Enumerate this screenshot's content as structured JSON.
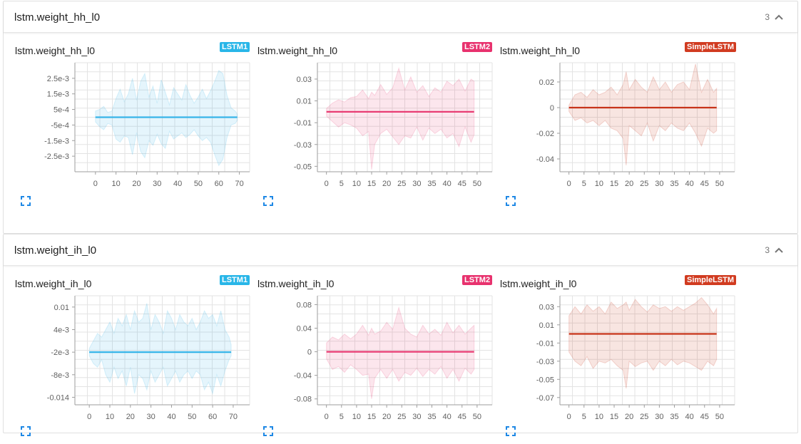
{
  "colors": {
    "lstm1": "#38b5e8",
    "lstm2": "#e83c73",
    "simple": "#c7341a",
    "grid": "#e3e3e3",
    "axis": "#9e9e9e",
    "expand_icon": "#1e88e5"
  },
  "sections": [
    {
      "title": "lstm.weight_hh_l0",
      "count": "3",
      "cards": [
        {
          "title": "lstm.weight_hh_l0",
          "run": "LSTM1",
          "run_color": "#29b6e8"
        },
        {
          "title": "lstm.weight_hh_l0",
          "run": "LSTM2",
          "run_color": "#e8326e"
        },
        {
          "title": "lstm.weight_hh_l0",
          "run": "SimpleLSTM",
          "run_color": "#d13b20"
        }
      ]
    },
    {
      "title": "lstm.weight_ih_l0",
      "count": "3",
      "cards": [
        {
          "title": "lstm.weight_ih_l0",
          "run": "LSTM1",
          "run_color": "#29b6e8"
        },
        {
          "title": "lstm.weight_ih_l0",
          "run": "LSTM2",
          "run_color": "#e8326e"
        },
        {
          "title": "lstm.weight_ih_l0",
          "run": "SimpleLSTM",
          "run_color": "#d13b20"
        }
      ]
    }
  ],
  "chart_data": [
    {
      "type": "area",
      "series_key": "lstm1",
      "ylim": [
        -0.0035,
        0.0035
      ],
      "xlim": [
        -10,
        75
      ],
      "yticks": [
        0.0025,
        0.0015,
        0.0005,
        -0.0005,
        -0.0015,
        -0.0025
      ],
      "ytick_labels": [
        "2.5e-3",
        "1.5e-3",
        "5e-4",
        "-5e-4",
        "-1.5e-3",
        "-2.5e-3"
      ],
      "xticks": [
        0,
        10,
        20,
        30,
        40,
        50,
        60,
        70
      ],
      "xtick_labels": [
        "0",
        "10",
        "20",
        "30",
        "40",
        "50",
        "60",
        "70"
      ],
      "x": [
        0,
        2,
        4,
        6,
        8,
        10,
        12,
        14,
        16,
        18,
        20,
        22,
        24,
        26,
        28,
        30,
        32,
        34,
        36,
        38,
        40,
        42,
        44,
        46,
        48,
        50,
        52,
        54,
        56,
        58,
        60,
        62,
        64,
        66,
        68,
        69
      ],
      "mean": [
        0.0,
        0.0,
        0.0,
        0.0,
        0.0,
        0.0,
        0.0,
        0.0,
        0.0,
        0.0,
        0.0,
        0.0,
        0.0,
        0.0,
        0.0,
        0.0,
        0.0,
        0.0,
        0.0,
        0.0,
        0.0,
        0.0,
        0.0,
        0.0,
        0.0,
        0.0,
        0.0,
        0.0,
        0.0,
        0.0,
        0.0,
        0.0,
        0.0,
        0.0,
        0.0,
        0.0
      ],
      "upper": [
        0.0004,
        0.0005,
        0.0007,
        0.0003,
        0.0004,
        0.0012,
        0.0018,
        0.001,
        0.0015,
        0.0025,
        0.0011,
        0.0023,
        0.0028,
        0.0013,
        0.002,
        0.0009,
        0.0024,
        0.0016,
        0.0008,
        0.0019,
        0.0015,
        0.0011,
        0.0021,
        0.0014,
        0.0009,
        0.0013,
        0.0018,
        0.0012,
        0.0017,
        0.0023,
        0.003,
        0.0028,
        0.0014,
        0.0006,
        0.0004,
        0.0002
      ],
      "lower": [
        -0.0003,
        -0.0006,
        -0.0008,
        -0.0004,
        -0.0005,
        -0.0014,
        -0.0016,
        -0.0012,
        -0.0013,
        -0.0024,
        -0.001,
        -0.0022,
        -0.0026,
        -0.0015,
        -0.0018,
        -0.0011,
        -0.0017,
        -0.002,
        -0.0009,
        -0.0014,
        -0.0012,
        -0.001,
        -0.0013,
        -0.0011,
        -0.0008,
        -0.0012,
        -0.0015,
        -0.0013,
        -0.0016,
        -0.0024,
        -0.0031,
        -0.0027,
        -0.0013,
        -0.0005,
        -0.0004,
        -0.0002
      ]
    },
    {
      "type": "area",
      "series_key": "lstm2",
      "ylim": [
        -0.055,
        0.045
      ],
      "xlim": [
        -3,
        55
      ],
      "yticks": [
        0.03,
        0.01,
        -0.01,
        -0.03,
        -0.05
      ],
      "ytick_labels": [
        "0.03",
        "0.01",
        "-0.01",
        "-0.03",
        "-0.05"
      ],
      "xticks": [
        0,
        5,
        10,
        15,
        20,
        25,
        30,
        35,
        40,
        45,
        50
      ],
      "xtick_labels": [
        "0",
        "5",
        "10",
        "15",
        "20",
        "25",
        "30",
        "35",
        "40",
        "45",
        "50"
      ],
      "x": [
        0,
        2,
        4,
        6,
        8,
        10,
        12,
        14,
        15,
        16,
        18,
        20,
        22,
        24,
        26,
        28,
        30,
        32,
        34,
        36,
        38,
        40,
        42,
        44,
        46,
        48,
        49
      ],
      "mean": [
        0,
        0,
        0,
        0,
        0,
        0,
        0,
        0,
        0,
        0,
        0,
        0,
        0,
        0,
        0,
        0,
        0,
        0,
        0,
        0,
        0,
        0,
        0,
        0,
        0,
        0,
        0
      ],
      "upper": [
        0.003,
        0.008,
        0.011,
        0.009,
        0.013,
        0.014,
        0.02,
        0.012,
        0.018,
        0.015,
        0.025,
        0.016,
        0.022,
        0.04,
        0.02,
        0.032,
        0.018,
        0.024,
        0.014,
        0.022,
        0.018,
        0.028,
        0.024,
        0.03,
        0.019,
        0.03,
        0.028
      ],
      "lower": [
        -0.004,
        -0.009,
        -0.014,
        -0.01,
        -0.012,
        -0.015,
        -0.022,
        -0.018,
        -0.053,
        -0.03,
        -0.02,
        -0.016,
        -0.023,
        -0.03,
        -0.022,
        -0.024,
        -0.014,
        -0.026,
        -0.015,
        -0.02,
        -0.016,
        -0.024,
        -0.02,
        -0.032,
        -0.014,
        -0.028,
        -0.021
      ]
    },
    {
      "type": "area",
      "series_key": "simple",
      "ylim": [
        -0.05,
        0.035
      ],
      "xlim": [
        -3,
        55
      ],
      "yticks": [
        0.02,
        0,
        -0.02,
        -0.04
      ],
      "ytick_labels": [
        "0.02",
        "0",
        "-0.02",
        "-0.04"
      ],
      "xticks": [
        0,
        5,
        10,
        15,
        20,
        25,
        30,
        35,
        40,
        45,
        50
      ],
      "xtick_labels": [
        "0",
        "5",
        "10",
        "15",
        "20",
        "25",
        "30",
        "35",
        "40",
        "45",
        "50"
      ],
      "x": [
        0,
        2,
        4,
        6,
        8,
        10,
        12,
        14,
        16,
        18,
        19,
        20,
        22,
        24,
        26,
        28,
        30,
        32,
        34,
        36,
        38,
        40,
        42,
        44,
        46,
        48,
        49
      ],
      "mean": [
        0,
        0,
        0,
        0,
        0,
        0,
        0,
        0,
        0,
        0,
        0,
        0,
        0,
        0,
        0,
        0,
        0,
        0,
        0,
        0,
        0,
        0,
        0,
        0,
        0,
        0,
        0
      ],
      "upper": [
        0.002,
        0.01,
        0.012,
        0.008,
        0.014,
        0.01,
        0.012,
        0.016,
        0.01,
        0.018,
        0.028,
        0.014,
        0.022,
        0.016,
        0.012,
        0.024,
        0.014,
        0.02,
        0.012,
        0.018,
        0.02,
        0.014,
        0.034,
        0.012,
        0.022,
        0.012,
        0.015
      ],
      "lower": [
        -0.003,
        -0.01,
        -0.008,
        -0.012,
        -0.01,
        -0.014,
        -0.01,
        -0.016,
        -0.018,
        -0.024,
        -0.045,
        -0.014,
        -0.018,
        -0.022,
        -0.012,
        -0.026,
        -0.014,
        -0.018,
        -0.012,
        -0.016,
        -0.018,
        -0.012,
        -0.02,
        -0.03,
        -0.016,
        -0.02,
        -0.018
      ]
    },
    {
      "type": "area",
      "series_key": "lstm1",
      "ylim": [
        -0.016,
        0.013
      ],
      "xlim": [
        -7,
        78
      ],
      "yticks": [
        0.01,
        0.004,
        -0.002,
        -0.008,
        -0.014
      ],
      "ytick_labels": [
        "0.01",
        "4e-3",
        "-2e-3",
        "-8e-3",
        "-0.014"
      ],
      "xticks": [
        0,
        10,
        20,
        30,
        40,
        50,
        60,
        70
      ],
      "xtick_labels": [
        "0",
        "10",
        "20",
        "30",
        "40",
        "50",
        "60",
        "70"
      ],
      "x": [
        0,
        2,
        4,
        6,
        8,
        10,
        12,
        14,
        16,
        18,
        20,
        22,
        24,
        26,
        28,
        30,
        32,
        34,
        36,
        38,
        40,
        42,
        44,
        46,
        48,
        50,
        52,
        54,
        56,
        58,
        60,
        62,
        64,
        66,
        68,
        69
      ],
      "mean": [
        -0.002,
        -0.002,
        -0.002,
        -0.002,
        -0.002,
        -0.002,
        -0.002,
        -0.002,
        -0.002,
        -0.002,
        -0.002,
        -0.002,
        -0.002,
        -0.002,
        -0.002,
        -0.002,
        -0.002,
        -0.002,
        -0.002,
        -0.002,
        -0.002,
        -0.002,
        -0.002,
        -0.002,
        -0.002,
        -0.002,
        -0.002,
        -0.002,
        -0.002,
        -0.002,
        -0.002,
        -0.002,
        -0.002,
        -0.002,
        -0.002,
        -0.002
      ],
      "upper": [
        -0.001,
        0.001,
        0.003,
        0.002,
        0.004,
        0.006,
        0.003,
        0.007,
        0.005,
        0.008,
        0.004,
        0.009,
        0.006,
        0.007,
        0.011,
        0.004,
        0.008,
        0.006,
        0.003,
        0.009,
        0.007,
        0.004,
        0.008,
        0.006,
        0.005,
        0.007,
        0.004,
        0.006,
        0.009,
        0.007,
        0.008,
        0.005,
        0.009,
        0.004,
        0.002,
        0.0
      ],
      "lower": [
        -0.003,
        -0.005,
        -0.006,
        -0.004,
        -0.008,
        -0.01,
        -0.006,
        -0.009,
        -0.007,
        -0.011,
        -0.006,
        -0.013,
        -0.008,
        -0.009,
        -0.012,
        -0.007,
        -0.01,
        -0.008,
        -0.006,
        -0.011,
        -0.009,
        -0.007,
        -0.01,
        -0.008,
        -0.007,
        -0.009,
        -0.007,
        -0.008,
        -0.012,
        -0.01,
        -0.013,
        -0.008,
        -0.011,
        -0.007,
        -0.004,
        -0.003
      ]
    },
    {
      "type": "area",
      "series_key": "lstm2",
      "ylim": [
        -0.09,
        0.095
      ],
      "xlim": [
        -3,
        55
      ],
      "yticks": [
        0.08,
        0.04,
        0,
        -0.04,
        -0.08
      ],
      "ytick_labels": [
        "0.08",
        "0.04",
        "0",
        "-0.04",
        "-0.08"
      ],
      "xticks": [
        0,
        5,
        10,
        15,
        20,
        25,
        30,
        35,
        40,
        45,
        50
      ],
      "xtick_labels": [
        "0",
        "5",
        "10",
        "15",
        "20",
        "25",
        "30",
        "35",
        "40",
        "45",
        "50"
      ],
      "x": [
        0,
        2,
        4,
        6,
        8,
        10,
        12,
        14,
        15,
        16,
        18,
        20,
        22,
        24,
        26,
        28,
        30,
        32,
        34,
        36,
        38,
        40,
        42,
        44,
        46,
        48,
        49
      ],
      "mean": [
        0,
        0,
        0,
        0,
        0,
        0,
        0,
        0,
        0,
        0,
        0,
        0,
        0,
        0,
        0,
        0,
        0,
        0,
        0,
        0,
        0,
        0,
        0,
        0,
        0,
        0,
        0
      ],
      "upper": [
        0.015,
        0.025,
        0.02,
        0.03,
        0.022,
        0.03,
        0.045,
        0.028,
        0.04,
        0.03,
        0.035,
        0.05,
        0.038,
        0.075,
        0.04,
        0.03,
        0.025,
        0.045,
        0.03,
        0.038,
        0.028,
        0.05,
        0.032,
        0.045,
        0.03,
        0.04,
        0.045
      ],
      "lower": [
        -0.012,
        -0.03,
        -0.025,
        -0.035,
        -0.022,
        -0.03,
        -0.04,
        -0.038,
        -0.08,
        -0.045,
        -0.03,
        -0.045,
        -0.03,
        -0.05,
        -0.035,
        -0.04,
        -0.028,
        -0.042,
        -0.03,
        -0.038,
        -0.025,
        -0.045,
        -0.03,
        -0.05,
        -0.028,
        -0.038,
        -0.03
      ]
    },
    {
      "type": "area",
      "series_key": "simple",
      "ylim": [
        -0.078,
        0.042
      ],
      "xlim": [
        -3,
        55
      ],
      "yticks": [
        0.03,
        0.01,
        -0.01,
        -0.03,
        -0.05,
        -0.07
      ],
      "ytick_labels": [
        "0.03",
        "0.01",
        "-0.01",
        "-0.03",
        "-0.05",
        "-0.07"
      ],
      "xticks": [
        0,
        5,
        10,
        15,
        20,
        25,
        30,
        35,
        40,
        45,
        50
      ],
      "xtick_labels": [
        "0",
        "5",
        "10",
        "15",
        "20",
        "25",
        "30",
        "35",
        "40",
        "45",
        "50"
      ],
      "x": [
        0,
        2,
        4,
        6,
        8,
        10,
        12,
        14,
        16,
        18,
        19,
        20,
        22,
        24,
        26,
        28,
        30,
        32,
        34,
        36,
        38,
        40,
        42,
        44,
        46,
        48,
        49
      ],
      "mean": [
        0,
        0,
        0,
        0,
        0,
        0,
        0,
        0,
        0,
        0,
        0,
        0,
        0,
        0,
        0,
        0,
        0,
        0,
        0,
        0,
        0,
        0,
        0,
        0,
        0,
        0,
        0
      ],
      "upper": [
        0.02,
        0.03,
        0.022,
        0.032,
        0.025,
        0.03,
        0.022,
        0.035,
        0.028,
        0.032,
        0.035,
        0.026,
        0.038,
        0.03,
        0.024,
        0.032,
        0.028,
        0.03,
        0.025,
        0.03,
        0.026,
        0.03,
        0.034,
        0.04,
        0.032,
        0.022,
        0.028
      ],
      "lower": [
        -0.02,
        -0.03,
        -0.035,
        -0.025,
        -0.038,
        -0.03,
        -0.032,
        -0.028,
        -0.035,
        -0.04,
        -0.06,
        -0.03,
        -0.036,
        -0.032,
        -0.03,
        -0.04,
        -0.03,
        -0.035,
        -0.028,
        -0.034,
        -0.03,
        -0.032,
        -0.036,
        -0.04,
        -0.03,
        -0.035,
        -0.028
      ]
    }
  ]
}
